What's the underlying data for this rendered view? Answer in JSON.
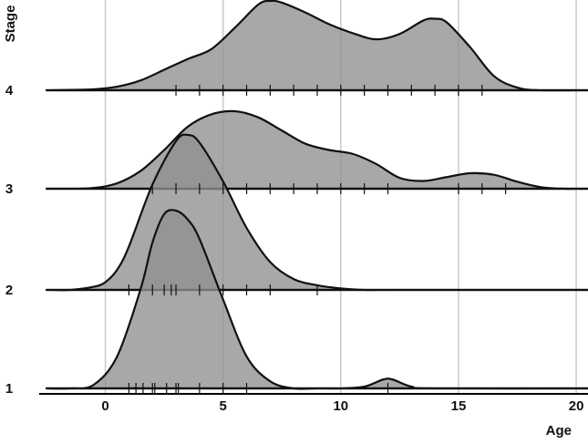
{
  "chart_data": {
    "type": "ridgeline",
    "xlabel": "Age",
    "ylabel": "Stage",
    "xlim": [
      -2.5,
      20.5
    ],
    "xticks": [
      0,
      5,
      10,
      15,
      20
    ],
    "grid": "vertical",
    "colors": {
      "fill": "#8f8f8f",
      "outline": "#111111",
      "grid": "#c9c9c9"
    },
    "series": [
      {
        "name": "1",
        "density_x": [
          -2.5,
          -1.5,
          -0.5,
          0.5,
          1.5,
          2.0,
          2.5,
          3.0,
          3.5,
          4.0,
          5.0,
          6.0,
          7.0,
          8.0,
          9.0,
          10.0,
          11.0,
          11.8,
          12.2,
          13.0,
          14.0,
          20.5
        ],
        "density_y": [
          0.0,
          0.0,
          0.02,
          0.18,
          0.56,
          0.82,
          0.98,
          1.0,
          0.95,
          0.84,
          0.5,
          0.18,
          0.04,
          0.0,
          0.0,
          0.0,
          0.01,
          0.05,
          0.05,
          0.01,
          0.0,
          0.0
        ],
        "rug": [
          1,
          1.3,
          1.6,
          2,
          2.1,
          2.6,
          3,
          3.1,
          4,
          5,
          6,
          12
        ]
      },
      {
        "name": "2",
        "density_x": [
          -2.5,
          -1.5,
          -0.5,
          0.0,
          0.5,
          1.0,
          2.0,
          3.0,
          3.5,
          4.0,
          5.0,
          6.0,
          7.0,
          8.0,
          9.0,
          10.0,
          11.0,
          12.0,
          20.5
        ],
        "density_y": [
          0.0,
          0.0,
          0.02,
          0.05,
          0.13,
          0.28,
          0.68,
          0.96,
          1.0,
          0.95,
          0.7,
          0.4,
          0.18,
          0.07,
          0.03,
          0.01,
          0.0,
          0.0,
          0.0
        ],
        "rug": [
          1,
          2,
          2.5,
          2.8,
          3,
          4,
          5,
          6,
          7,
          9
        ]
      },
      {
        "name": "3",
        "density_x": [
          -2.5,
          -1.5,
          -0.5,
          0.5,
          1.5,
          2.5,
          3.5,
          4.5,
          5.5,
          6.5,
          7.5,
          8.5,
          9.5,
          10.5,
          11.5,
          12.5,
          13.5,
          14.5,
          15.5,
          16.5,
          17.5,
          18.5,
          19.5,
          20.5
        ],
        "density_y": [
          0.0,
          0.0,
          0.01,
          0.07,
          0.23,
          0.5,
          0.8,
          0.96,
          1.0,
          0.92,
          0.75,
          0.58,
          0.5,
          0.45,
          0.32,
          0.14,
          0.1,
          0.15,
          0.2,
          0.18,
          0.09,
          0.02,
          0.0,
          0.0
        ],
        "rug": [
          2,
          3,
          4,
          5,
          6,
          7,
          8,
          9,
          10,
          11,
          12,
          15,
          16,
          17
        ]
      },
      {
        "name": "4",
        "density_x": [
          -2.5,
          -0.5,
          0.5,
          1.5,
          2.5,
          3.5,
          4.5,
          5.5,
          6.5,
          7.0,
          7.5,
          8.5,
          9.5,
          10.5,
          11.5,
          12.5,
          13.5,
          14.0,
          14.5,
          15.5,
          16.5,
          17.5,
          18.5,
          20.5
        ],
        "density_y": [
          0.0,
          0.01,
          0.04,
          0.11,
          0.23,
          0.35,
          0.46,
          0.7,
          0.96,
          1.0,
          0.98,
          0.87,
          0.74,
          0.64,
          0.57,
          0.63,
          0.78,
          0.8,
          0.76,
          0.48,
          0.16,
          0.03,
          0.0,
          0.0
        ],
        "rug": [
          3,
          4,
          5,
          6,
          7,
          8,
          9,
          10,
          11,
          12,
          13,
          14,
          15,
          16
        ]
      }
    ]
  }
}
